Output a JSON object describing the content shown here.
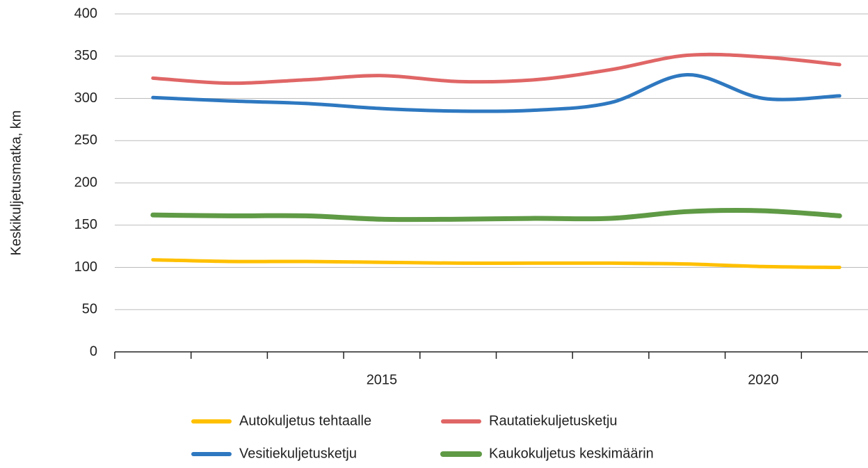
{
  "chart_data": {
    "type": "line",
    "y_label": "Keskikuljetusmatka, km",
    "categories": [
      null,
      null,
      null,
      "2015",
      null,
      null,
      null,
      null,
      "2020",
      null
    ],
    "series": [
      {
        "name": "Autokuljetus tehtaalle",
        "color": "#ffc000",
        "values": [
          109,
          107,
          107,
          106,
          105,
          105,
          105,
          104,
          101,
          100
        ]
      },
      {
        "name": "Rautatiekuljetusketju",
        "color": "#e06666",
        "values": [
          324,
          318,
          322,
          327,
          320,
          322,
          334,
          351,
          349,
          340
        ]
      },
      {
        "name": "Vesitiekuljetusketju",
        "color": "#2e78c0",
        "values": [
          301,
          297,
          294,
          288,
          285,
          286,
          295,
          328,
          300,
          303
        ]
      },
      {
        "name": "Kaukokuljetus keskimäärin",
        "color": "#5f9a45",
        "values": [
          162,
          161,
          161,
          157,
          157,
          158,
          158,
          166,
          167,
          161
        ]
      }
    ],
    "ylim": [
      0,
      400
    ],
    "yticks": [
      0,
      50,
      100,
      150,
      200,
      250,
      300,
      350,
      400
    ],
    "grid": true
  }
}
